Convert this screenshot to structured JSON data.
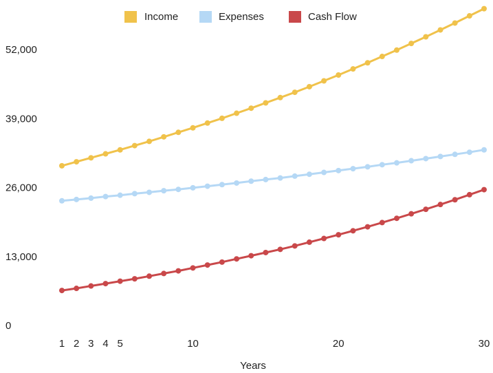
{
  "chart_data": {
    "type": "line",
    "title": "",
    "xlabel": "Years",
    "ylabel": "",
    "xlim": [
      1,
      30
    ],
    "ylim": [
      0,
      52000
    ],
    "xticks": [
      1,
      2,
      3,
      4,
      5,
      10,
      20,
      30
    ],
    "yticks": [
      0,
      13000,
      26000,
      39000,
      52000
    ],
    "ytick_labels": [
      "0",
      "13,000",
      "26,000",
      "39,000",
      "52,000"
    ],
    "grid": false,
    "legend_position": "top",
    "x": [
      1,
      2,
      3,
      4,
      5,
      6,
      7,
      8,
      9,
      10,
      11,
      12,
      13,
      14,
      15,
      16,
      17,
      18,
      19,
      20,
      21,
      22,
      23,
      24,
      25,
      26,
      27,
      28,
      29,
      30
    ],
    "series": [
      {
        "name": "Income",
        "color": "#f0c24b",
        "values": [
          30100,
          30850,
          31600,
          32350,
          33100,
          33900,
          34700,
          35550,
          36400,
          37250,
          38150,
          39050,
          40000,
          40950,
          41950,
          42950,
          43950,
          45000,
          46100,
          47200,
          48350,
          49500,
          50700,
          51900,
          53150,
          54400,
          55700,
          57000,
          58350,
          59700
        ]
      },
      {
        "name": "Expenses",
        "color": "#b5d8f5",
        "values": [
          23500,
          23750,
          24000,
          24300,
          24550,
          24850,
          25100,
          25400,
          25650,
          25950,
          26250,
          26550,
          26850,
          27200,
          27500,
          27800,
          28150,
          28500,
          28850,
          29200,
          29550,
          29900,
          30300,
          30650,
          31050,
          31450,
          31850,
          32250,
          32650,
          33100
        ]
      },
      {
        "name": "Cash Flow",
        "color": "#c9484a",
        "values": [
          6600,
          7000,
          7450,
          7900,
          8350,
          8800,
          9300,
          9800,
          10300,
          10850,
          11400,
          11950,
          12550,
          13150,
          13750,
          14350,
          15000,
          15700,
          16400,
          17100,
          17850,
          18600,
          19400,
          20200,
          21050,
          21900,
          22800,
          23700,
          24650,
          25600
        ]
      }
    ]
  }
}
